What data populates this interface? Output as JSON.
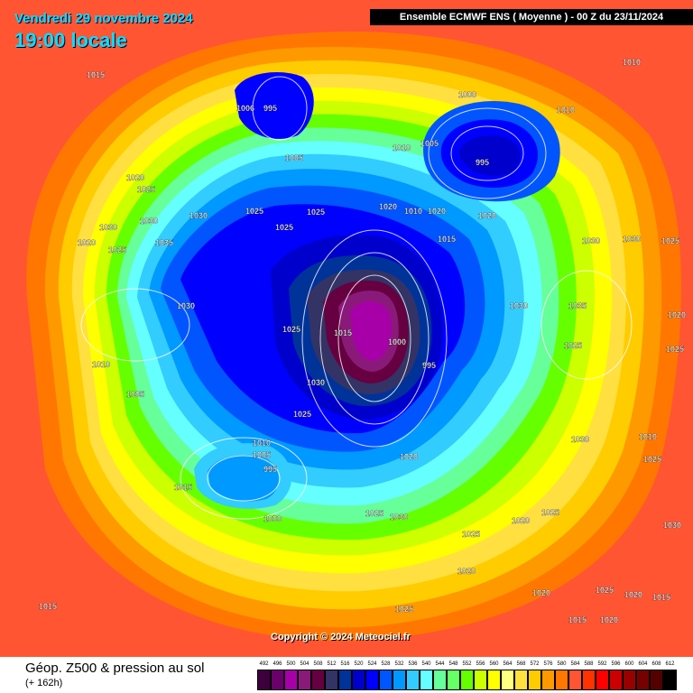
{
  "header": {
    "date": "Vendredi 29 novembre 2024",
    "time": "19:00 locale",
    "model": "Ensemble ECMWF ENS  ( Moyenne )  -  00 Z du 23/11/2024"
  },
  "copyright": "Copyright © 2024 Meteociel.fr",
  "footer": {
    "title": "Géop. Z500 & pression au sol",
    "subtitle": "(+ 162h)"
  },
  "legend": {
    "labels": [
      "492",
      "496",
      "500",
      "504",
      "508",
      "512",
      "516",
      "520",
      "524",
      "528",
      "532",
      "536",
      "540",
      "544",
      "548",
      "552",
      "556",
      "560",
      "564",
      "568",
      "572",
      "576",
      "580",
      "584",
      "588",
      "592",
      "596",
      "600",
      "604",
      "608",
      "612"
    ],
    "colors": [
      "#3d003d",
      "#6b006b",
      "#a800a8",
      "#8a1a7a",
      "#660040",
      "#333366",
      "#003399",
      "#0000cc",
      "#0000ff",
      "#0055ff",
      "#0099ff",
      "#33ccff",
      "#66ffff",
      "#66ff99",
      "#66ff66",
      "#66ff00",
      "#ccff00",
      "#ffff00",
      "#ffff80",
      "#ffe040",
      "#ffcc00",
      "#ff9900",
      "#ff7700",
      "#ff5533",
      "#ff3300",
      "#ff0000",
      "#cc0000",
      "#990000",
      "#770000",
      "#550000",
      "#000000"
    ]
  },
  "pressure_labels": [
    "1015",
    "1010",
    "1000",
    "1010",
    "1005",
    "995",
    "1006",
    "995",
    "1005",
    "1010",
    "1020",
    "1010",
    "1020",
    "1020",
    "1015",
    "1020",
    "1025",
    "1025",
    "1030",
    "1025",
    "1030",
    "1035",
    "1030",
    "1025",
    "1020",
    "1025",
    "1030",
    "1030",
    "1015",
    "1010",
    "1005",
    "1000",
    "995",
    "1025",
    "1030",
    "1025",
    "1010",
    "1005",
    "995",
    "1015",
    "1000",
    "1020",
    "1025",
    "1030",
    "1025",
    "1020",
    "1020",
    "1025",
    "1030",
    "1025",
    "1025",
    "1030",
    "1020",
    "1025",
    "1015",
    "1015",
    "1020",
    "1020",
    "1015",
    "1025",
    "1010",
    "1030",
    "1025",
    "1025",
    "1030",
    "1035",
    "1020"
  ]
}
